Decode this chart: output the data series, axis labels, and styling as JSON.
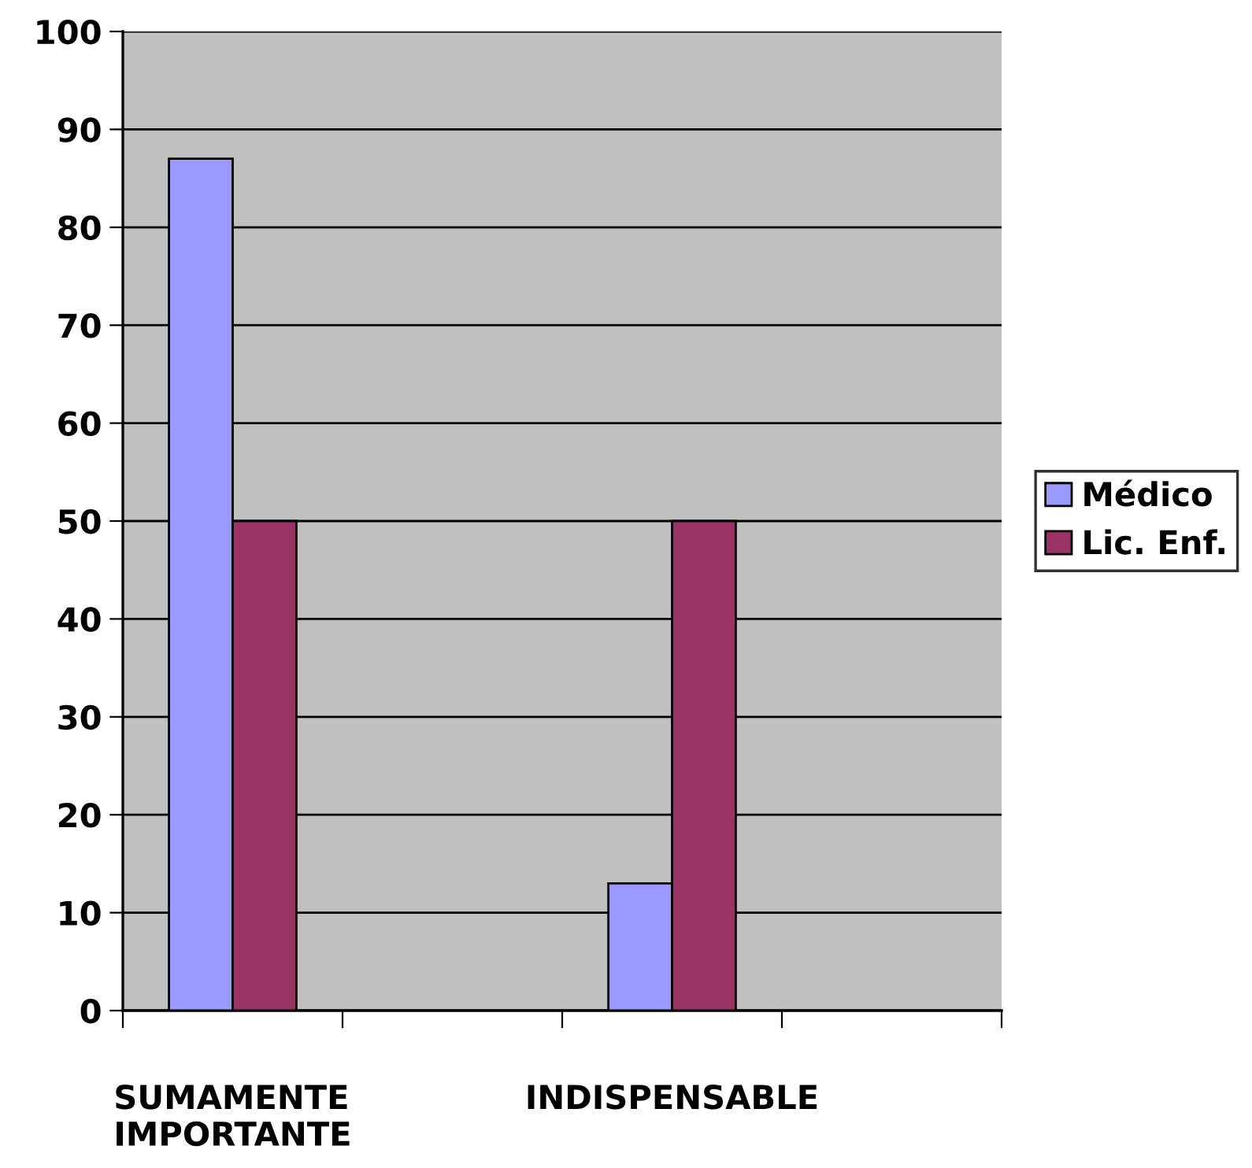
{
  "chart_data": {
    "type": "bar",
    "categories": [
      "SUMAMENTE IMPORTANTE",
      null,
      "INDISPENSABLE",
      null
    ],
    "series": [
      {
        "name": "Médico",
        "color": "#9999ff",
        "values": [
          87,
          null,
          13,
          null
        ]
      },
      {
        "name": "Lic. Enf.",
        "color": "#993366",
        "values": [
          50,
          null,
          50,
          null
        ]
      }
    ],
    "ylim": [
      0,
      100
    ],
    "yticks": [
      0,
      10,
      20,
      30,
      40,
      50,
      60,
      70,
      80,
      90,
      100
    ],
    "grid": "y",
    "legend": "right"
  }
}
